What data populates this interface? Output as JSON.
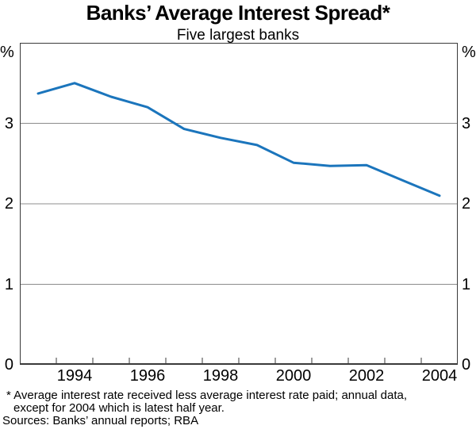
{
  "title": "Banks’ Average Interest Spread*",
  "subtitle": "Five largest banks",
  "axis_units": {
    "left": "%",
    "right": "%"
  },
  "footnote": {
    "line1": "* Average interest rate received less average interest rate paid; annual data,",
    "line2": "except for 2004 which is latest half year.",
    "sources": "Sources: Banks’ annual reports; RBA"
  },
  "colors": {
    "line": "#1b75bc",
    "grid": "#8c8c8c",
    "axis": "#3a3a3a",
    "text": "#000000"
  },
  "chart_data": {
    "type": "line",
    "title": "Banks’ Average Interest Spread*",
    "subtitle": "Five largest banks",
    "ylabel": "%",
    "x": [
      1993,
      1994,
      1995,
      1996,
      1997,
      1998,
      1999,
      2000,
      2001,
      2002,
      2003,
      2004
    ],
    "series": [
      {
        "name": "Average interest spread (five largest banks)",
        "values": [
          3.37,
          3.5,
          3.33,
          3.2,
          2.93,
          2.82,
          2.73,
          2.51,
          2.47,
          2.48,
          2.29,
          2.1
        ]
      }
    ],
    "x_plotted_mid_year": true,
    "xlim": [
      1993,
      2005
    ],
    "ylim": [
      0,
      4
    ],
    "yticks": [
      0,
      1,
      2,
      3
    ],
    "ytick_unit_top": "%",
    "xtick_labels": [
      1994,
      1996,
      1998,
      2000,
      2002,
      2004
    ],
    "grid": true,
    "legend": "none",
    "line_color": "#1b75bc"
  }
}
